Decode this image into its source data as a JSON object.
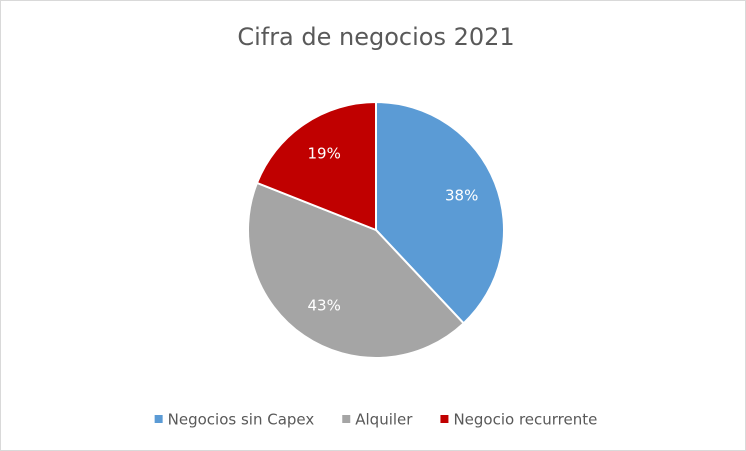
{
  "chart_data": {
    "type": "pie",
    "title": "Cifra de negocios 2021",
    "categories": [
      "Negocios sin Capex",
      "Alquiler",
      "Negocio recurrente"
    ],
    "values": [
      38,
      43,
      19
    ],
    "value_labels": [
      "38%",
      "43%",
      "19%"
    ],
    "colors": [
      "#5b9bd5",
      "#a5a5a5",
      "#c00000"
    ],
    "legend": "bottom"
  }
}
